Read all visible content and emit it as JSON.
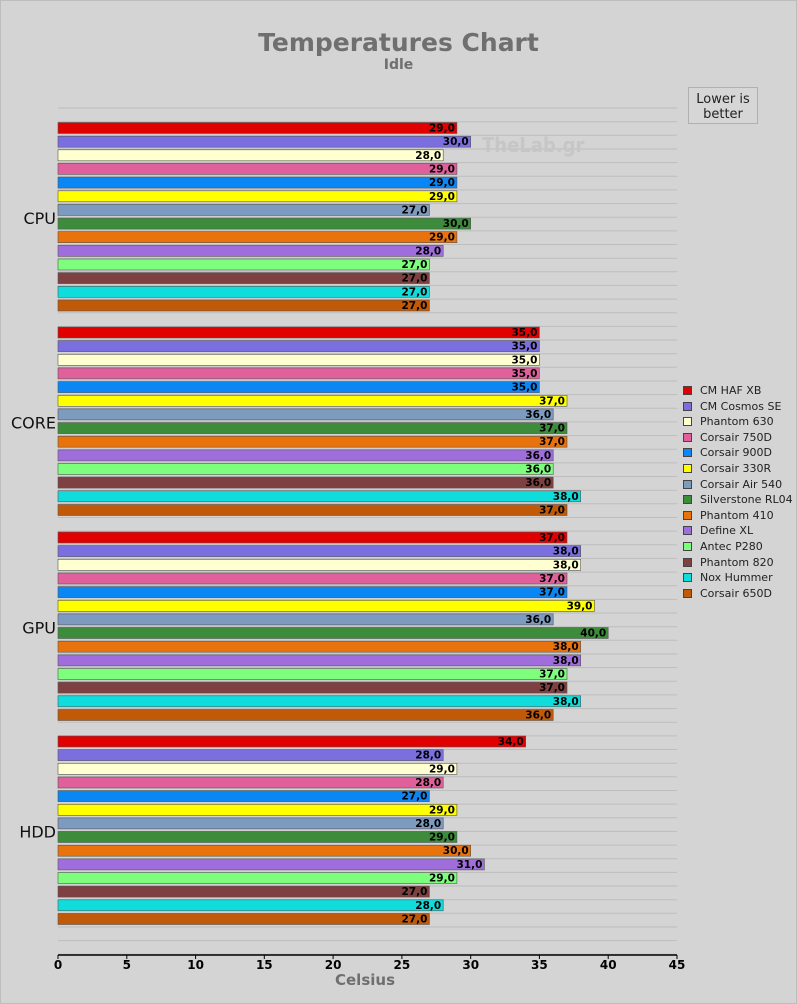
{
  "chart_data": {
    "type": "bar",
    "orientation": "horizontal",
    "title": "Temperatures Chart",
    "subtitle": "Idle",
    "xlabel": "Celsius",
    "ylabel": "",
    "xlim": [
      0,
      45
    ],
    "xticks": [
      "0",
      "5",
      "10",
      "15",
      "20",
      "25",
      "30",
      "35",
      "40",
      "45"
    ],
    "note": "Lower is better",
    "watermark": "TheLab.gr",
    "categories": [
      "CPU",
      "CORE",
      "GPU",
      "HDD"
    ],
    "series": [
      {
        "name": "CM HAF XB",
        "color": "#e00000",
        "values": [
          29,
          35,
          37,
          34
        ],
        "labels": [
          "29,0",
          "35,0",
          "37,0",
          "34,0"
        ]
      },
      {
        "name": "CM Cosmos SE",
        "color": "#7b6fe0",
        "values": [
          30,
          35,
          38,
          28
        ],
        "labels": [
          "30,0",
          "35,0",
          "38,0",
          "28,0"
        ]
      },
      {
        "name": "Phantom 630",
        "color": "#ffffd0",
        "values": [
          28,
          35,
          38,
          29
        ],
        "labels": [
          "28,0",
          "35,0",
          "38,0",
          "29,0"
        ]
      },
      {
        "name": "Corsair 750D",
        "color": "#e0609c",
        "values": [
          29,
          35,
          37,
          28
        ],
        "labels": [
          "29,0",
          "35,0",
          "37,0",
          "28,0"
        ]
      },
      {
        "name": "Corsair 900D",
        "color": "#0a86f5",
        "values": [
          29,
          35,
          37,
          27
        ],
        "labels": [
          "29,0",
          "35,0",
          "37,0",
          "27,0"
        ]
      },
      {
        "name": "Corsair 330R",
        "color": "#ffff00",
        "values": [
          29,
          37,
          39,
          29
        ],
        "labels": [
          "29,0",
          "37,0",
          "39,0",
          "29,0"
        ]
      },
      {
        "name": "Corsair Air 540",
        "color": "#7d9abf",
        "values": [
          27,
          36,
          36,
          28
        ],
        "labels": [
          "27,0",
          "36,0",
          "36,0",
          "28,0"
        ]
      },
      {
        "name": "Silverstone RL04",
        "color": "#3c8c3c",
        "values": [
          30,
          37,
          40,
          29
        ],
        "labels": [
          "30,0",
          "37,0",
          "40,0",
          "29,0"
        ]
      },
      {
        "name": "Phantom 410",
        "color": "#e8720c",
        "values": [
          29,
          37,
          38,
          30
        ],
        "labels": [
          "29,0",
          "37,0",
          "38,0",
          "30,0"
        ]
      },
      {
        "name": "Define XL",
        "color": "#a06ddc",
        "values": [
          28,
          36,
          38,
          31
        ],
        "labels": [
          "28,0",
          "36,0",
          "38,0",
          "31,0"
        ]
      },
      {
        "name": "Antec P280",
        "color": "#7dff7d",
        "values": [
          27,
          36,
          37,
          29
        ],
        "labels": [
          "27,0",
          "36,0",
          "37,0",
          "29,0"
        ]
      },
      {
        "name": "Phantom 820",
        "color": "#7e4040",
        "values": [
          27,
          36,
          37,
          27
        ],
        "labels": [
          "27,0",
          "36,0",
          "37,0",
          "27,0"
        ]
      },
      {
        "name": "Nox Hummer",
        "color": "#10dcdc",
        "values": [
          27,
          38,
          38,
          28
        ],
        "labels": [
          "27,0",
          "38,0",
          "38,0",
          "28,0"
        ]
      },
      {
        "name": "Corsair 650D",
        "color": "#c05a08",
        "values": [
          27,
          37,
          36,
          27
        ],
        "labels": [
          "27,0",
          "37,0",
          "36,0",
          "27,0"
        ]
      }
    ]
  }
}
